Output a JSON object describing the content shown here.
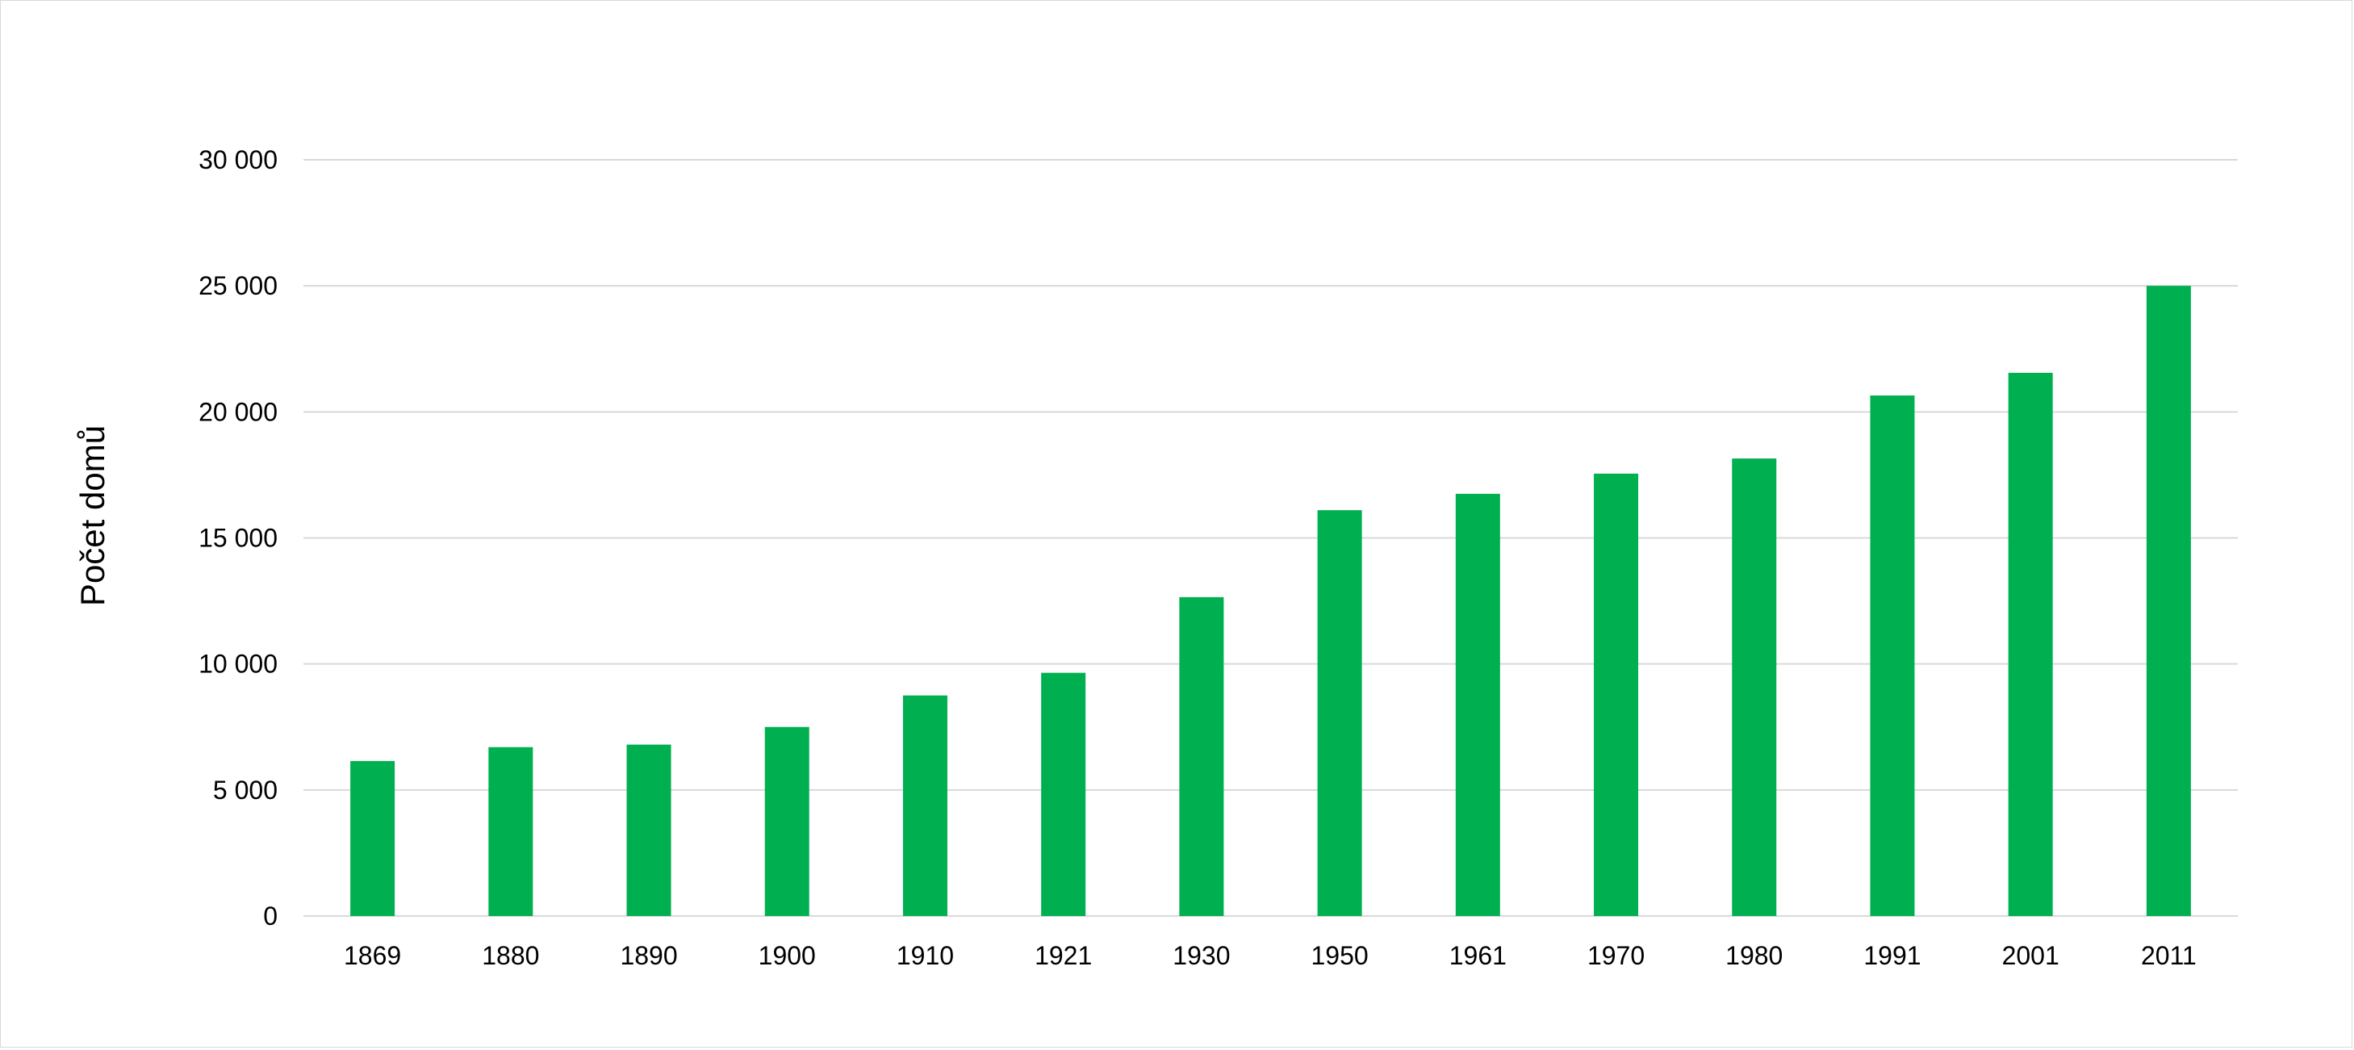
{
  "chart_data": {
    "type": "bar",
    "title": "",
    "xlabel": "",
    "ylabel": "Počet domů",
    "categories": [
      "1869",
      "1880",
      "1890",
      "1900",
      "1910",
      "1921",
      "1930",
      "1950",
      "1961",
      "1970",
      "1980",
      "1991",
      "2001",
      "2011"
    ],
    "values": [
      6150,
      6700,
      6800,
      7500,
      8750,
      9650,
      12650,
      16100,
      16750,
      17550,
      18150,
      20650,
      21550,
      25000
    ],
    "ylim": [
      0,
      30000
    ],
    "yticks": [
      0,
      5000,
      10000,
      15000,
      20000,
      25000,
      30000
    ],
    "ytick_labels": [
      "0",
      "5 000",
      "10 000",
      "15 000",
      "20 000",
      "25 000",
      "30 000"
    ],
    "grid": true,
    "legend": "none",
    "bar_color": "#00b050",
    "grid_color": "#d9d9d9"
  }
}
